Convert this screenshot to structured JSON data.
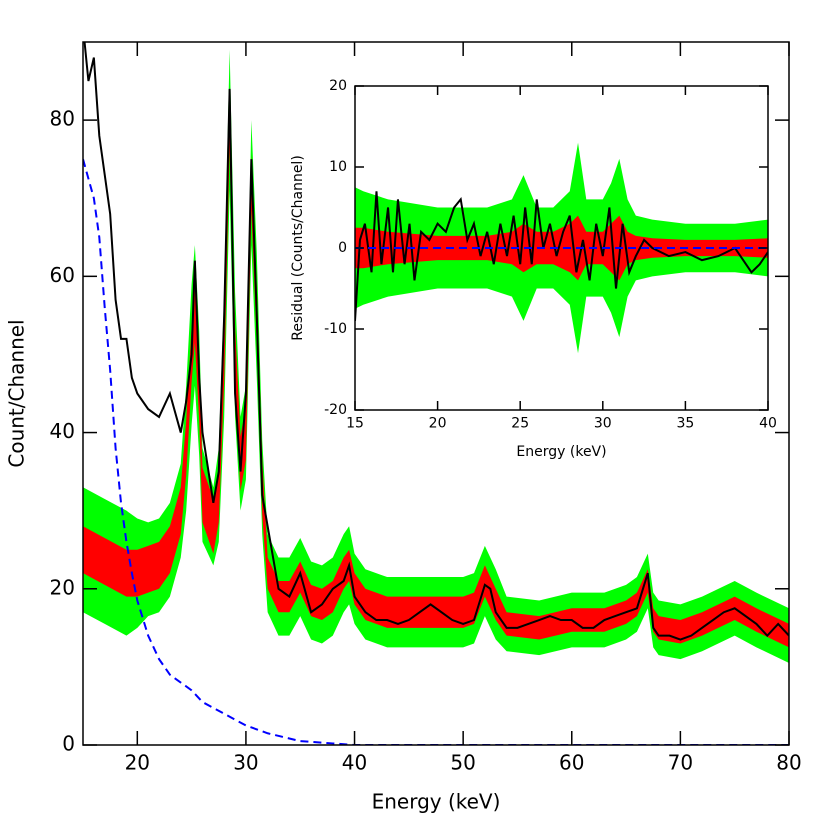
{
  "chart_data": [
    {
      "type": "line",
      "xlabel": "Energy (keV)",
      "ylabel": "Count/Channel",
      "xlim": [
        15,
        80
      ],
      "ylim": [
        0,
        90
      ],
      "xticks": [
        20,
        30,
        40,
        50,
        60,
        70,
        80
      ],
      "yticks": [
        0,
        20,
        40,
        60,
        80
      ],
      "band_x": [
        15,
        17,
        19,
        20,
        21,
        22,
        23,
        24,
        24.5,
        25,
        25.3,
        25.7,
        26,
        27,
        27.5,
        28,
        28.5,
        29,
        29.5,
        30,
        30.5,
        31,
        31.5,
        32,
        33,
        34,
        35,
        36,
        37,
        38,
        39,
        39.5,
        40,
        41,
        43,
        46,
        50,
        51,
        52,
        53,
        54,
        57,
        60,
        63,
        65,
        66,
        67,
        67.5,
        68,
        70,
        72,
        75,
        77,
        80
      ],
      "bands": [
        {
          "color": "#00ff00",
          "upper": [
            33,
            31.5,
            30,
            29,
            28.5,
            29,
            31,
            36,
            46,
            59,
            64,
            53,
            38,
            33,
            38,
            58,
            89,
            58,
            42,
            46,
            80,
            63,
            39,
            27,
            24,
            24,
            26.5,
            23.5,
            23,
            24,
            27,
            28,
            24.5,
            22.5,
            21.5,
            21.5,
            21.5,
            22,
            25.5,
            22.5,
            19,
            18.5,
            19.5,
            19.5,
            20.5,
            21.5,
            24.5,
            19.5,
            18.5,
            18,
            19,
            21,
            19.5,
            17.5
          ],
          "lower": [
            17,
            15.5,
            14,
            15,
            16.5,
            17,
            19,
            24,
            30,
            41,
            46,
            37,
            26,
            23,
            26,
            42,
            71,
            42,
            30,
            34,
            64,
            47,
            27,
            17,
            14,
            14,
            16.5,
            13.5,
            13,
            14,
            17,
            18,
            15.5,
            13.5,
            12.5,
            12.5,
            12.5,
            13,
            16.5,
            13.5,
            12,
            11.5,
            12.5,
            12.5,
            13.5,
            14.5,
            17.5,
            12.5,
            11.5,
            11,
            12,
            14,
            12.5,
            10.5
          ]
        },
        {
          "color": "#ff0000",
          "upper": [
            28,
            26.5,
            25,
            25,
            25.5,
            26,
            28,
            33,
            41.5,
            53.5,
            58.5,
            48.5,
            35.5,
            31.5,
            35.5,
            53.5,
            83.5,
            53.5,
            39.5,
            43.5,
            75.5,
            58.5,
            36.5,
            24,
            21,
            21,
            23.5,
            20.5,
            20,
            21,
            24,
            25,
            22,
            20,
            19,
            19,
            19,
            19.5,
            23,
            20,
            17,
            16.5,
            17.5,
            17.5,
            18.5,
            19.5,
            22.5,
            17.5,
            16.5,
            16,
            17,
            19,
            17.5,
            15.5
          ],
          "lower": [
            22,
            20.5,
            19,
            19,
            19.5,
            20,
            22,
            27,
            34.5,
            46.5,
            51.5,
            41.5,
            28.5,
            24.5,
            28.5,
            46.5,
            76.5,
            46.5,
            32.5,
            36.5,
            68.5,
            51.5,
            29.5,
            20,
            17,
            17,
            19.5,
            16.5,
            16,
            17,
            20,
            21,
            18,
            16,
            15,
            15,
            15,
            15.5,
            19,
            16,
            14,
            13.5,
            14.5,
            14.5,
            15.5,
            16.5,
            19.5,
            14.5,
            13.5,
            13,
            14,
            16,
            14.5,
            12.5
          ]
        }
      ],
      "series": [
        {
          "color": "#000000",
          "x": [
            15,
            15.5,
            16,
            16.5,
            17,
            17.5,
            18,
            18.5,
            19,
            19.5,
            20,
            21,
            22,
            23,
            24,
            24.5,
            25,
            25.3,
            25.7,
            26,
            27,
            27.5,
            28,
            28.5,
            29,
            29.5,
            30,
            30.5,
            31,
            31.5,
            32,
            33,
            34,
            35,
            36,
            37,
            38,
            39,
            39.5,
            40,
            41,
            42,
            43,
            44,
            45,
            46,
            47,
            48,
            49,
            50,
            51,
            52,
            52.5,
            53,
            54,
            55,
            56,
            57,
            58,
            59,
            60,
            61,
            62,
            63,
            64,
            65,
            66,
            67,
            67.5,
            68,
            69,
            70,
            71,
            72,
            73,
            74,
            75,
            76,
            77,
            78,
            79,
            80
          ],
          "values": [
            92,
            85,
            88,
            78,
            73,
            68,
            57,
            52,
            52,
            47,
            45,
            43,
            42,
            45,
            40,
            44,
            50,
            62,
            47,
            40,
            31,
            35,
            55,
            84,
            45,
            35,
            45,
            75,
            55,
            32,
            28,
            20,
            19,
            22,
            17,
            18,
            20,
            21,
            23,
            19,
            17,
            16,
            16,
            15.5,
            16,
            17,
            18,
            17,
            16,
            15.5,
            16,
            20.5,
            20,
            17,
            15,
            15,
            15.5,
            16,
            16.5,
            16,
            16,
            15,
            15,
            16,
            16.5,
            17,
            17.5,
            22,
            15,
            14,
            14,
            13.5,
            14,
            15,
            16,
            17,
            17.5,
            16.5,
            15.5,
            14,
            15.5,
            14
          ]
        },
        {
          "color": "#0000ff",
          "dash": true,
          "x": [
            15,
            16,
            16.5,
            17,
            17.5,
            18,
            18.5,
            19,
            19.5,
            20,
            21,
            22,
            23,
            24,
            25,
            26,
            28,
            30,
            32,
            35,
            38,
            40,
            80
          ],
          "values": [
            75,
            70,
            65,
            56,
            48,
            38,
            31,
            26,
            22,
            18.5,
            14,
            11,
            9,
            8,
            7,
            5.5,
            4,
            2.5,
            1.5,
            0.5,
            0.2,
            0,
            0
          ]
        }
      ]
    },
    {
      "type": "line",
      "xlabel": "Energy (keV)",
      "ylabel": "Residual (Counts/Channel)",
      "xlim": [
        15,
        40
      ],
      "ylim": [
        -20,
        20
      ],
      "xticks": [
        15,
        20,
        25,
        30,
        35,
        40
      ],
      "yticks": [
        -20,
        -10,
        0,
        10,
        20
      ],
      "band_x": [
        15,
        15.5,
        17,
        20,
        23,
        24.5,
        25.2,
        26,
        27,
        28,
        28.5,
        29,
        30,
        30.5,
        31,
        31.5,
        32,
        33,
        35,
        38,
        40
      ],
      "bands": [
        {
          "color": "#00ff00",
          "upper": [
            7.5,
            7,
            6,
            5,
            5,
            6,
            9,
            5,
            5,
            7,
            13,
            6,
            6,
            8,
            11,
            6,
            4,
            3.5,
            3,
            3,
            3.5
          ],
          "lower": [
            -7.5,
            -7,
            -6,
            -5,
            -5,
            -6,
            -9,
            -5,
            -5,
            -7,
            -13,
            -6,
            -6,
            -8,
            -11,
            -6,
            -4,
            -3.5,
            -3,
            -3,
            -3.5
          ]
        },
        {
          "color": "#ff0000",
          "upper": [
            2.5,
            2.5,
            2,
            1.5,
            1.5,
            2,
            3,
            2,
            2,
            3,
            4,
            2,
            2,
            3,
            4,
            2,
            1.5,
            1.2,
            1,
            1,
            1.2
          ],
          "lower": [
            -2.5,
            -2.5,
            -2,
            -1.5,
            -1.5,
            -2,
            -3,
            -2,
            -2,
            -3,
            -4,
            -2,
            -2,
            -3,
            -4,
            -2,
            -1.5,
            -1.2,
            -1,
            -1,
            -1.2
          ]
        }
      ],
      "series": [
        {
          "color": "#000000",
          "x": [
            15,
            15.3,
            15.6,
            16,
            16.3,
            16.6,
            17,
            17.3,
            17.6,
            18,
            18.3,
            18.6,
            19,
            19.5,
            20,
            20.5,
            21,
            21.4,
            21.8,
            22.2,
            22.6,
            23,
            23.4,
            23.8,
            24.2,
            24.6,
            25,
            25.3,
            25.7,
            26,
            26.4,
            26.8,
            27.2,
            27.6,
            28,
            28.4,
            28.8,
            29.2,
            29.6,
            30,
            30.4,
            30.8,
            31.2,
            31.6,
            32,
            32.5,
            33,
            34,
            35,
            36,
            37,
            38,
            39,
            39.5,
            40
          ],
          "values": [
            -9,
            1,
            3,
            -3,
            7,
            -2,
            5,
            -3,
            6,
            -2,
            3,
            -4,
            2,
            1,
            3,
            2,
            5,
            6,
            1,
            3,
            -1,
            2,
            -2,
            3,
            -1,
            4,
            -2,
            5,
            -2,
            6,
            0,
            3,
            -1,
            2,
            4,
            -3,
            1,
            -4,
            3,
            -1,
            5,
            -5,
            3,
            -3,
            -1,
            1,
            0,
            -1,
            -0.5,
            -1.5,
            -1,
            0,
            -3,
            -2,
            -0.5
          ]
        },
        {
          "color": "#0000ff",
          "dash": true,
          "x": [
            15,
            40
          ],
          "values": [
            0,
            0
          ]
        }
      ]
    }
  ]
}
